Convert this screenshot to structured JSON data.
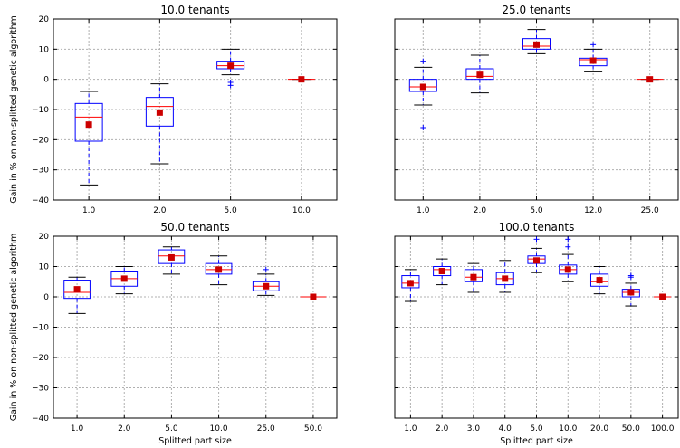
{
  "chart_data": [
    {
      "type": "box",
      "title": "10.0 tenants",
      "xlabel": "",
      "ylabel": "Gain in % on non-splitted genetic algorithm",
      "ylim": [
        -40,
        20
      ],
      "yticks": [
        "20",
        "10",
        "0",
        "−10",
        "−20",
        "−30",
        "−40"
      ],
      "categories": [
        "1.0",
        "2.0",
        "5.0",
        "10.0"
      ],
      "boxes": [
        {
          "whislo": -35,
          "q1": -20.5,
          "med": -12.5,
          "q3": -8,
          "whishi": -4,
          "mean": -15,
          "fliers": []
        },
        {
          "whislo": -28,
          "q1": -15.5,
          "med": -9,
          "q3": -6,
          "whishi": -1.5,
          "mean": -11,
          "fliers": []
        },
        {
          "whislo": 1.5,
          "q1": 3.5,
          "med": 4.5,
          "q3": 6,
          "whishi": 10,
          "mean": 4.5,
          "fliers": [
            -1,
            -2
          ]
        },
        {
          "whislo": 0,
          "q1": 0,
          "med": 0,
          "q3": 0,
          "whishi": 0,
          "mean": 0,
          "fliers": []
        }
      ],
      "grid": true
    },
    {
      "type": "box",
      "title": "25.0 tenants",
      "xlabel": "",
      "ylabel": "",
      "ylim": [
        -40,
        20
      ],
      "yticks": [],
      "categories": [
        "1.0",
        "2.0",
        "5.0",
        "12.0",
        "25.0"
      ],
      "boxes": [
        {
          "whislo": -8.5,
          "q1": -4,
          "med": -2.5,
          "q3": 0,
          "whishi": 4,
          "mean": -2.5,
          "fliers": [
            6,
            -16
          ]
        },
        {
          "whislo": -4.5,
          "q1": 0,
          "med": 1,
          "q3": 3.5,
          "whishi": 8,
          "mean": 1.5,
          "fliers": []
        },
        {
          "whislo": 8.5,
          "q1": 10,
          "med": 11,
          "q3": 13.5,
          "whishi": 16.5,
          "mean": 11.5,
          "fliers": []
        },
        {
          "whislo": 2.5,
          "q1": 4.5,
          "med": 6.5,
          "q3": 7,
          "whishi": 10,
          "mean": 6.2,
          "fliers": [
            11.5
          ]
        },
        {
          "whislo": 0,
          "q1": 0,
          "med": 0,
          "q3": 0,
          "whishi": 0,
          "mean": 0,
          "fliers": []
        }
      ],
      "grid": true
    },
    {
      "type": "box",
      "title": "50.0 tenants",
      "xlabel": "Splitted part size",
      "ylabel": "Gain in % on non-splitted genetic algorithm",
      "ylim": [
        -40,
        20
      ],
      "yticks": [
        "20",
        "10",
        "0",
        "−10",
        "−20",
        "−30",
        "−40"
      ],
      "categories": [
        "1.0",
        "2.0",
        "5.0",
        "10.0",
        "25.0",
        "50.0"
      ],
      "boxes": [
        {
          "whislo": -5.5,
          "q1": -0.5,
          "med": 1.5,
          "q3": 5.5,
          "whishi": 6.5,
          "mean": 2.5,
          "fliers": []
        },
        {
          "whislo": 1,
          "q1": 3.5,
          "med": 6,
          "q3": 8.5,
          "whishi": 10,
          "mean": 6,
          "fliers": []
        },
        {
          "whislo": 7.5,
          "q1": 11,
          "med": 13.5,
          "q3": 15.5,
          "whishi": 16.5,
          "mean": 13,
          "fliers": []
        },
        {
          "whislo": 4,
          "q1": 7.5,
          "med": 9,
          "q3": 11,
          "whishi": 13.5,
          "mean": 9,
          "fliers": []
        },
        {
          "whislo": 0.5,
          "q1": 2,
          "med": 3.5,
          "q3": 5,
          "whishi": 7.5,
          "mean": 3.5,
          "fliers": [
            9
          ]
        },
        {
          "whislo": 0,
          "q1": 0,
          "med": 0,
          "q3": 0,
          "whishi": 0,
          "mean": 0,
          "fliers": []
        }
      ],
      "grid": true
    },
    {
      "type": "box",
      "title": "100.0 tenants",
      "xlabel": "Splitted part size",
      "ylabel": "",
      "ylim": [
        -40,
        20
      ],
      "yticks": [],
      "categories": [
        "1.0",
        "2.0",
        "3.0",
        "4.0",
        "5.0",
        "10.0",
        "20.0",
        "50.0",
        "100.0"
      ],
      "boxes": [
        {
          "whislo": -1.5,
          "q1": 3,
          "med": 4.5,
          "q3": 7,
          "whishi": 9,
          "mean": 4.5,
          "fliers": []
        },
        {
          "whislo": 4,
          "q1": 7,
          "med": 9,
          "q3": 10,
          "whishi": 12.5,
          "mean": 8.5,
          "fliers": []
        },
        {
          "whislo": 1.5,
          "q1": 5,
          "med": 6.5,
          "q3": 9,
          "whishi": 11,
          "mean": 6.5,
          "fliers": []
        },
        {
          "whislo": 1.5,
          "q1": 4,
          "med": 6,
          "q3": 8,
          "whishi": 12,
          "mean": 6,
          "fliers": []
        },
        {
          "whislo": 8,
          "q1": 11,
          "med": 12.5,
          "q3": 13.5,
          "whishi": 16,
          "mean": 12,
          "fliers": [
            19
          ]
        },
        {
          "whislo": 5,
          "q1": 7.5,
          "med": 9,
          "q3": 10.5,
          "whishi": 14,
          "mean": 9,
          "fliers": [
            16.5,
            19
          ]
        },
        {
          "whislo": 1,
          "q1": 3.5,
          "med": 5,
          "q3": 7.5,
          "whishi": 10,
          "mean": 5.5,
          "fliers": []
        },
        {
          "whislo": -3,
          "q1": 0,
          "med": 1.5,
          "q3": 2.5,
          "whishi": 4.5,
          "mean": 1.5,
          "fliers": [
            7,
            6.5
          ]
        },
        {
          "whislo": 0,
          "q1": 0,
          "med": 0,
          "q3": 0,
          "whishi": 0,
          "mean": 0,
          "fliers": []
        }
      ],
      "grid": true
    }
  ],
  "colors": {
    "box": "#0000ff",
    "median": "#ff0000",
    "mean": "#cc0000",
    "whisker_cap": "#000000",
    "grid": "#b0b0b0"
  }
}
